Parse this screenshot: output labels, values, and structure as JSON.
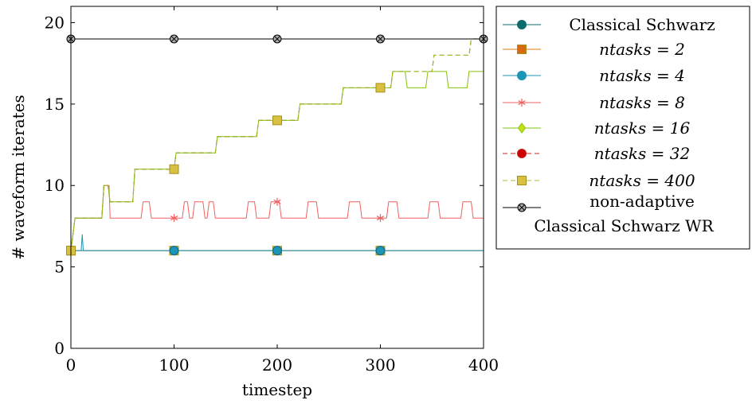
{
  "chart_data": {
    "type": "line",
    "xlabel": "timestep",
    "ylabel": "# waveform iterates",
    "xlim": [
      0,
      400
    ],
    "ylim": [
      0,
      21
    ],
    "xticks": [
      0,
      100,
      200,
      300,
      400
    ],
    "yticks": [
      0,
      5,
      10,
      15,
      20
    ],
    "grid": false,
    "legend_position": "outside-right",
    "series": [
      {
        "name": "Classical Schwarz",
        "color": "#0e6b6b",
        "dash": "solid",
        "marker": "circle",
        "steps": [
          [
            0,
            6
          ],
          [
            400,
            6
          ]
        ],
        "marker_x": []
      },
      {
        "name": "ntasks = 2",
        "color": "#e07a10",
        "dash": "solid",
        "marker": "square",
        "steps": [
          [
            0,
            6
          ],
          [
            400,
            6
          ]
        ],
        "marker_x": [
          0,
          100,
          200,
          300
        ]
      },
      {
        "name": "ntasks = 4",
        "color": "#1b94b5",
        "dash": "solid",
        "marker": "circle",
        "steps": [
          [
            0,
            6
          ],
          [
            10,
            6
          ],
          [
            11,
            7
          ],
          [
            12,
            6
          ],
          [
            400,
            6
          ]
        ],
        "marker_x": [
          0,
          100,
          200,
          300
        ]
      },
      {
        "name": "ntasks = 8",
        "color": "#f06060",
        "dash": "solid",
        "marker": "star",
        "steps": [
          [
            0,
            6
          ],
          [
            4,
            8
          ],
          [
            30,
            8
          ],
          [
            32,
            10
          ],
          [
            37,
            10
          ],
          [
            38,
            8
          ],
          [
            68,
            8
          ],
          [
            70,
            9
          ],
          [
            76,
            9
          ],
          [
            78,
            8
          ],
          [
            108,
            8
          ],
          [
            110,
            9
          ],
          [
            113,
            9
          ],
          [
            115,
            8
          ],
          [
            118,
            8
          ],
          [
            120,
            9
          ],
          [
            128,
            9
          ],
          [
            130,
            8
          ],
          [
            132,
            8
          ],
          [
            134,
            9
          ],
          [
            138,
            9
          ],
          [
            140,
            8
          ],
          [
            170,
            8
          ],
          [
            172,
            9
          ],
          [
            178,
            9
          ],
          [
            180,
            8
          ],
          [
            192,
            8
          ],
          [
            194,
            9
          ],
          [
            202,
            9
          ],
          [
            204,
            8
          ],
          [
            228,
            8
          ],
          [
            230,
            9
          ],
          [
            238,
            9
          ],
          [
            240,
            8
          ],
          [
            268,
            8
          ],
          [
            270,
            9
          ],
          [
            280,
            9
          ],
          [
            282,
            8
          ],
          [
            306,
            8
          ],
          [
            308,
            9
          ],
          [
            316,
            9
          ],
          [
            318,
            8
          ],
          [
            346,
            8
          ],
          [
            348,
            9
          ],
          [
            356,
            9
          ],
          [
            358,
            8
          ],
          [
            378,
            8
          ],
          [
            380,
            9
          ],
          [
            388,
            9
          ],
          [
            390,
            8
          ],
          [
            400,
            8
          ]
        ],
        "marker_x": [
          100,
          200,
          300
        ]
      },
      {
        "name": "ntasks = 16",
        "color": "#82c40a",
        "dash": "solid",
        "marker": "diamond",
        "steps": [
          [
            0,
            6
          ],
          [
            4,
            8
          ],
          [
            30,
            8
          ],
          [
            32,
            10
          ],
          [
            36,
            10
          ],
          [
            38,
            9
          ],
          [
            60,
            9
          ],
          [
            62,
            11
          ],
          [
            100,
            11
          ],
          [
            102,
            12
          ],
          [
            140,
            12
          ],
          [
            142,
            13
          ],
          [
            180,
            13
          ],
          [
            182,
            14
          ],
          [
            220,
            14
          ],
          [
            222,
            15
          ],
          [
            262,
            15
          ],
          [
            264,
            16
          ],
          [
            310,
            16
          ],
          [
            312,
            17
          ],
          [
            324,
            17
          ],
          [
            326,
            16
          ],
          [
            344,
            16
          ],
          [
            346,
            17
          ],
          [
            364,
            17
          ],
          [
            366,
            16
          ],
          [
            384,
            16
          ],
          [
            386,
            17
          ],
          [
            400,
            17
          ]
        ],
        "marker_x": []
      },
      {
        "name": "ntasks = 32",
        "color": "#a04020",
        "dash": "dashed",
        "marker": "circle",
        "steps": [
          [
            0,
            6
          ],
          [
            4,
            8
          ],
          [
            30,
            8
          ],
          [
            32,
            10
          ],
          [
            36,
            10
          ],
          [
            38,
            9
          ],
          [
            60,
            9
          ],
          [
            62,
            11
          ],
          [
            100,
            11
          ],
          [
            102,
            12
          ],
          [
            140,
            12
          ],
          [
            142,
            13
          ],
          [
            180,
            13
          ],
          [
            182,
            14
          ],
          [
            220,
            14
          ],
          [
            222,
            15
          ],
          [
            262,
            15
          ],
          [
            264,
            16
          ],
          [
            310,
            16
          ],
          [
            312,
            17
          ],
          [
            350,
            17
          ],
          [
            352,
            18
          ],
          [
            386,
            18
          ],
          [
            388,
            19
          ],
          [
            400,
            19
          ]
        ],
        "marker_x": []
      },
      {
        "name": "ntasks = 400",
        "color": "#9bbf2a",
        "dash": "dashed",
        "marker": "square",
        "steps": [
          [
            0,
            6
          ],
          [
            4,
            8
          ],
          [
            30,
            8
          ],
          [
            32,
            10
          ],
          [
            36,
            10
          ],
          [
            38,
            9
          ],
          [
            60,
            9
          ],
          [
            62,
            11
          ],
          [
            100,
            11
          ],
          [
            102,
            12
          ],
          [
            140,
            12
          ],
          [
            142,
            13
          ],
          [
            180,
            13
          ],
          [
            182,
            14
          ],
          [
            220,
            14
          ],
          [
            222,
            15
          ],
          [
            262,
            15
          ],
          [
            264,
            16
          ],
          [
            310,
            16
          ],
          [
            312,
            17
          ],
          [
            350,
            17
          ],
          [
            352,
            18
          ],
          [
            386,
            18
          ],
          [
            388,
            19
          ],
          [
            400,
            19
          ]
        ],
        "marker_x": [
          0,
          100,
          200,
          300
        ]
      },
      {
        "name": "non-adaptive Classical Schwarz WR",
        "color": "#000000",
        "dash": "solid",
        "marker": "otimes",
        "steps": [
          [
            0,
            19
          ],
          [
            400,
            19
          ]
        ],
        "marker_x": [
          0,
          100,
          200,
          300,
          400
        ]
      }
    ],
    "legend": [
      {
        "text": "Classical Schwarz",
        "math": false,
        "color": "#0e6b6b",
        "dash": "solid",
        "marker": "circle",
        "fill": "#0e6b6b"
      },
      {
        "text": "ntasks = 2",
        "math": true,
        "color": "#e07a10",
        "dash": "solid",
        "marker": "square",
        "fill": "#d86a10"
      },
      {
        "text": "ntasks = 4",
        "math": true,
        "color": "#1b94b5",
        "dash": "solid",
        "marker": "circle",
        "fill": "#1b94b5"
      },
      {
        "text": "ntasks = 8",
        "math": true,
        "color": "#f06060",
        "dash": "solid",
        "marker": "star",
        "fill": "#f06060"
      },
      {
        "text": "ntasks = 16",
        "math": true,
        "color": "#82c40a",
        "dash": "solid",
        "marker": "diamond",
        "fill": "#c8e010"
      },
      {
        "text": "ntasks = 32",
        "math": true,
        "color": "#cc2020",
        "dash": "dashed",
        "marker": "circle",
        "fill": "#cc0000"
      },
      {
        "text": "ntasks = 400",
        "math": true,
        "color": "#a8c030",
        "dash": "dashed",
        "marker": "square",
        "fill": "#d8c040"
      },
      {
        "text": "non-adaptive",
        "text2": "Classical Schwarz WR",
        "math": false,
        "color": "#000000",
        "dash": "solid",
        "marker": "otimes",
        "fill": "#aaaaaa"
      }
    ]
  },
  "marker_styles": {
    "square_fill": "#d8c040",
    "square_stroke": "#a89020",
    "circle_fill": "#1b94b5",
    "circle_stroke": "#106a86",
    "star_color": "#f06060",
    "otimes_fill": "#aaaaaa"
  }
}
